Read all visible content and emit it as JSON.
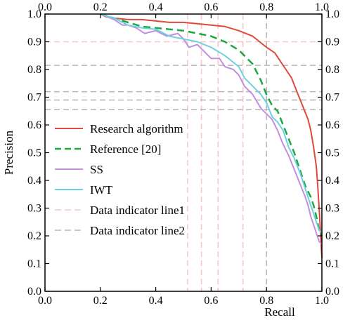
{
  "chart_data": {
    "type": "line",
    "xlabel": "Recall",
    "ylabel": "Precision",
    "xlim": [
      0,
      1
    ],
    "ylim": [
      0,
      1
    ],
    "x_ticks": [
      "0.0",
      "0.2",
      "0.4",
      "0.6",
      "0.8",
      "1.0"
    ],
    "y_ticks": [
      "0.0",
      "0.1",
      "0.2",
      "0.3",
      "0.4",
      "0.5",
      "0.6",
      "0.7",
      "0.8",
      "0.9",
      "1.0"
    ],
    "grid": false,
    "legend_position": "center-left",
    "series": [
      {
        "name": "Research algorithm",
        "color": "#e04a3c",
        "dash": "solid",
        "points": [
          [
            0.2,
            1.0
          ],
          [
            0.22,
            0.99
          ],
          [
            0.25,
            0.985
          ],
          [
            0.3,
            0.98
          ],
          [
            0.35,
            0.98
          ],
          [
            0.4,
            0.975
          ],
          [
            0.45,
            0.97
          ],
          [
            0.5,
            0.97
          ],
          [
            0.55,
            0.965
          ],
          [
            0.6,
            0.96
          ],
          [
            0.65,
            0.955
          ],
          [
            0.7,
            0.94
          ],
          [
            0.75,
            0.92
          ],
          [
            0.8,
            0.88
          ],
          [
            0.83,
            0.86
          ],
          [
            0.85,
            0.83
          ],
          [
            0.87,
            0.8
          ],
          [
            0.89,
            0.77
          ],
          [
            0.91,
            0.72
          ],
          [
            0.93,
            0.67
          ],
          [
            0.95,
            0.62
          ],
          [
            0.96,
            0.58
          ],
          [
            0.97,
            0.52
          ],
          [
            0.98,
            0.45
          ],
          [
            0.985,
            0.38
          ],
          [
            0.99,
            0.3
          ],
          [
            1.0,
            0.12
          ]
        ]
      },
      {
        "name": "Reference [20]",
        "color": "#1aa843",
        "dash": "dashed",
        "points": [
          [
            0.2,
            1.0
          ],
          [
            0.25,
            0.985
          ],
          [
            0.3,
            0.97
          ],
          [
            0.35,
            0.955
          ],
          [
            0.4,
            0.95
          ],
          [
            0.45,
            0.945
          ],
          [
            0.5,
            0.94
          ],
          [
            0.55,
            0.93
          ],
          [
            0.6,
            0.92
          ],
          [
            0.65,
            0.9
          ],
          [
            0.7,
            0.87
          ],
          [
            0.72,
            0.85
          ],
          [
            0.75,
            0.82
          ],
          [
            0.78,
            0.76
          ],
          [
            0.8,
            0.71
          ],
          [
            0.82,
            0.67
          ],
          [
            0.84,
            0.65
          ],
          [
            0.86,
            0.6
          ],
          [
            0.88,
            0.55
          ],
          [
            0.9,
            0.5
          ],
          [
            0.92,
            0.44
          ],
          [
            0.94,
            0.38
          ],
          [
            0.96,
            0.34
          ],
          [
            0.97,
            0.31
          ],
          [
            0.98,
            0.27
          ],
          [
            0.99,
            0.22
          ],
          [
            1.0,
            0.2
          ]
        ]
      },
      {
        "name": "SS",
        "color": "#c28fe0",
        "dash": "solid",
        "points": [
          [
            0.2,
            1.0
          ],
          [
            0.25,
            0.98
          ],
          [
            0.28,
            0.96
          ],
          [
            0.3,
            0.96
          ],
          [
            0.33,
            0.95
          ],
          [
            0.36,
            0.93
          ],
          [
            0.4,
            0.94
          ],
          [
            0.44,
            0.92
          ],
          [
            0.48,
            0.93
          ],
          [
            0.5,
            0.91
          ],
          [
            0.52,
            0.88
          ],
          [
            0.55,
            0.89
          ],
          [
            0.58,
            0.86
          ],
          [
            0.6,
            0.84
          ],
          [
            0.63,
            0.84
          ],
          [
            0.65,
            0.81
          ],
          [
            0.68,
            0.8
          ],
          [
            0.7,
            0.78
          ],
          [
            0.72,
            0.74
          ],
          [
            0.75,
            0.71
          ],
          [
            0.78,
            0.66
          ],
          [
            0.8,
            0.64
          ],
          [
            0.82,
            0.62
          ],
          [
            0.84,
            0.58
          ],
          [
            0.86,
            0.53
          ],
          [
            0.88,
            0.49
          ],
          [
            0.9,
            0.44
          ],
          [
            0.92,
            0.39
          ],
          [
            0.94,
            0.34
          ],
          [
            0.95,
            0.31
          ],
          [
            0.96,
            0.27
          ],
          [
            0.97,
            0.24
          ],
          [
            0.98,
            0.21
          ],
          [
            0.99,
            0.18
          ],
          [
            1.0,
            0.17
          ]
        ]
      },
      {
        "name": "IWT",
        "color": "#6fd0e0",
        "dash": "solid",
        "points": [
          [
            0.2,
            1.0
          ],
          [
            0.25,
            0.985
          ],
          [
            0.3,
            0.96
          ],
          [
            0.35,
            0.95
          ],
          [
            0.4,
            0.945
          ],
          [
            0.45,
            0.92
          ],
          [
            0.5,
            0.91
          ],
          [
            0.55,
            0.9
          ],
          [
            0.6,
            0.88
          ],
          [
            0.65,
            0.85
          ],
          [
            0.7,
            0.81
          ],
          [
            0.72,
            0.77
          ],
          [
            0.75,
            0.74
          ],
          [
            0.78,
            0.71
          ],
          [
            0.8,
            0.68
          ],
          [
            0.82,
            0.63
          ],
          [
            0.84,
            0.61
          ],
          [
            0.86,
            0.58
          ],
          [
            0.88,
            0.52
          ],
          [
            0.9,
            0.48
          ],
          [
            0.92,
            0.43
          ],
          [
            0.94,
            0.37
          ],
          [
            0.96,
            0.31
          ],
          [
            0.97,
            0.28
          ],
          [
            0.98,
            0.25
          ],
          [
            0.99,
            0.22
          ],
          [
            1.0,
            0.21
          ]
        ]
      }
    ],
    "indicator_lines": [
      {
        "name": "Data indicator line1",
        "color": "#f7c6c3",
        "dash": "dashed",
        "vertical_x": [
          0.515,
          0.565,
          0.625,
          0.715
        ],
        "horizontal_y": [
          0.9
        ]
      },
      {
        "name": "Data indicator line2",
        "color": "#b5b5b5",
        "dash": "dashed",
        "vertical_x": [
          0.8
        ],
        "horizontal_y": [
          0.815,
          0.72,
          0.69,
          0.655
        ]
      }
    ]
  }
}
